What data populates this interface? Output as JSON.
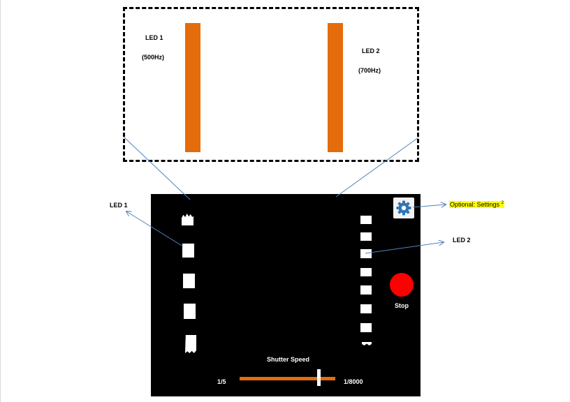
{
  "led_box": {
    "led1_name": "LED 1",
    "led1_freq": "(500Hz)",
    "led2_name": "LED 2",
    "led2_freq": "(700Hz)"
  },
  "screen": {
    "stop_label": "Stop",
    "shutter_label": "Shutter Speed",
    "shutter_min": "1/5",
    "shutter_max": "1/8000",
    "settings_icon": "gear-icon"
  },
  "callouts": {
    "led1": "LED 1",
    "led2": "LED 2",
    "settings": "Optional: Settings",
    "settings_note": "2"
  },
  "colors": {
    "led_bar": "#e46c0a",
    "stop": "#ff0000",
    "arrow": "#4f81bd",
    "highlight": "#ffff00"
  }
}
